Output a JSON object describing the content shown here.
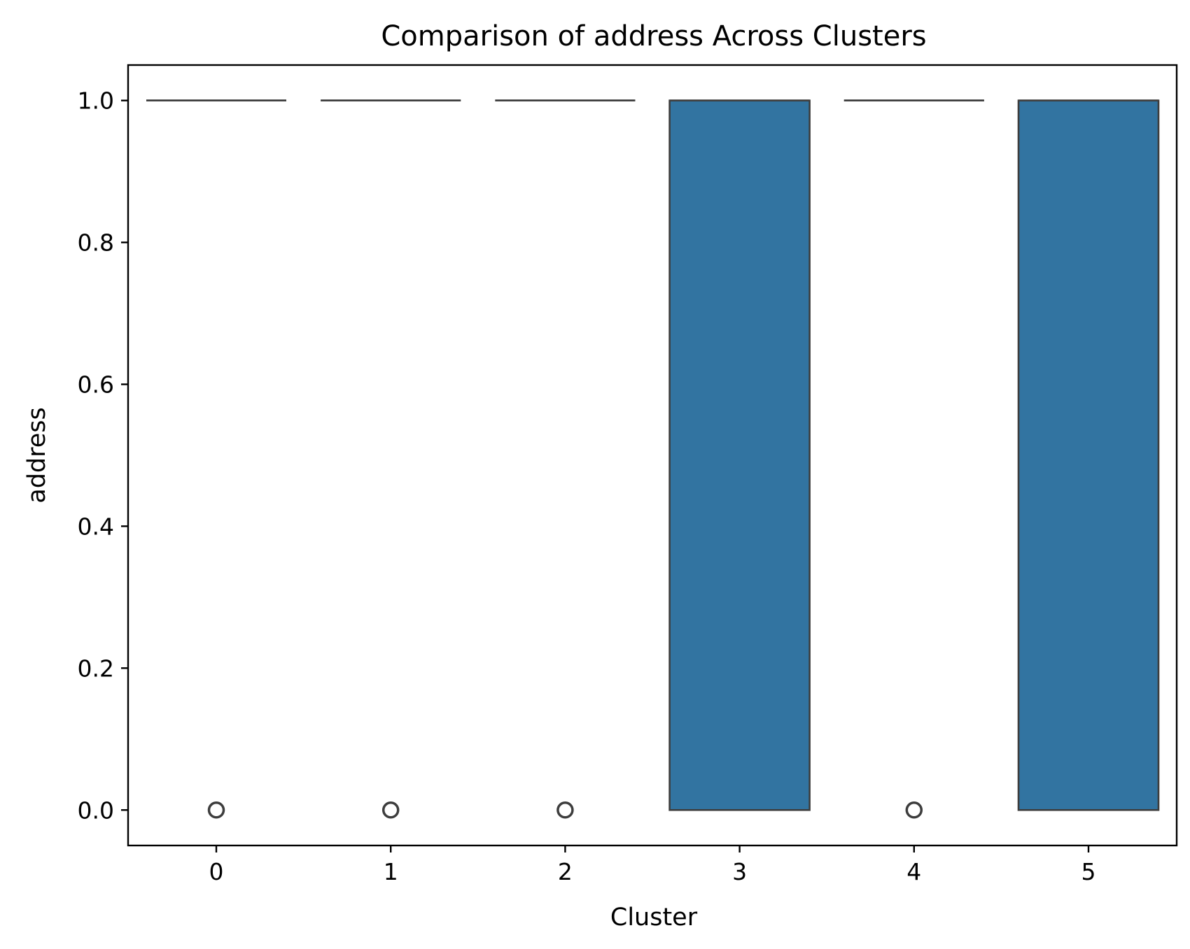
{
  "chart_data": {
    "type": "box",
    "title": "Comparison of address Across Clusters",
    "xlabel": "Cluster",
    "ylabel": "address",
    "ylim": [
      -0.05,
      1.05
    ],
    "yticks": [
      0.0,
      0.2,
      0.4,
      0.6,
      0.8,
      1.0
    ],
    "ytick_labels": [
      "0.0",
      "0.2",
      "0.4",
      "0.6",
      "0.8",
      "1.0"
    ],
    "categories": [
      "0",
      "1",
      "2",
      "3",
      "4",
      "5"
    ],
    "boxes": [
      {
        "cluster": "0",
        "q1": 1.0,
        "median": 1.0,
        "q3": 1.0,
        "whisker_low": 1.0,
        "whisker_high": 1.0,
        "outliers": [
          0.0
        ]
      },
      {
        "cluster": "1",
        "q1": 1.0,
        "median": 1.0,
        "q3": 1.0,
        "whisker_low": 1.0,
        "whisker_high": 1.0,
        "outliers": [
          0.0
        ]
      },
      {
        "cluster": "2",
        "q1": 1.0,
        "median": 1.0,
        "q3": 1.0,
        "whisker_low": 1.0,
        "whisker_high": 1.0,
        "outliers": [
          0.0
        ]
      },
      {
        "cluster": "3",
        "q1": 0.0,
        "median": 1.0,
        "q3": 1.0,
        "whisker_low": 0.0,
        "whisker_high": 1.0,
        "outliers": []
      },
      {
        "cluster": "4",
        "q1": 1.0,
        "median": 1.0,
        "q3": 1.0,
        "whisker_low": 1.0,
        "whisker_high": 1.0,
        "outliers": [
          0.0
        ]
      },
      {
        "cluster": "5",
        "q1": 0.0,
        "median": 1.0,
        "q3": 1.0,
        "whisker_low": 0.0,
        "whisker_high": 1.0,
        "outliers": []
      }
    ],
    "box_color": "#3274a1",
    "edge_color": "#3d3d3d",
    "grid": false,
    "legend": "none"
  }
}
